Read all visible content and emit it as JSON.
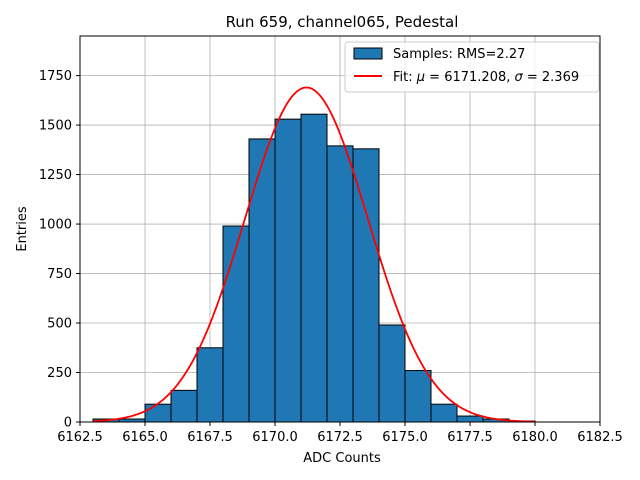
{
  "chart_data": {
    "type": "bar",
    "title": "Run 659, channel065, Pedestal",
    "xlabel": "ADC Counts",
    "ylabel": "Entries",
    "xlim": [
      6162.5,
      6182.5
    ],
    "ylim": [
      0,
      1950
    ],
    "xticks": [
      6162.5,
      6165.0,
      6167.5,
      6170.0,
      6172.5,
      6175.0,
      6177.5,
      6180.0,
      6182.5
    ],
    "xtick_labels": [
      "6162.5",
      "6165.0",
      "6167.5",
      "6170.0",
      "6172.5",
      "6175.0",
      "6177.5",
      "6180.0",
      "6182.5"
    ],
    "yticks": [
      0,
      250,
      500,
      750,
      1000,
      1250,
      1500,
      1750
    ],
    "ytick_labels": [
      "0",
      "250",
      "500",
      "750",
      "1000",
      "1250",
      "1500",
      "1750"
    ],
    "grid": true,
    "legend_position": "top-right",
    "histogram": {
      "name": "Samples: RMS=2.27",
      "color": "#1f77b4",
      "bin_edges": [
        6163,
        6164,
        6165,
        6166,
        6167,
        6168,
        6169,
        6170,
        6171,
        6172,
        6173,
        6174,
        6175,
        6176,
        6177,
        6178,
        6179,
        6180,
        6181,
        6182
      ],
      "counts": [
        15,
        15,
        90,
        160,
        375,
        990,
        1430,
        1530,
        1555,
        1395,
        1380,
        490,
        260,
        90,
        30,
        15,
        5,
        0,
        0
      ]
    },
    "fit": {
      "name": "Fit: μ = 6171.208, σ = 2.369",
      "name_prefix": "Fit: ",
      "mu_symbol": "μ",
      "mu_text": " = 6171.208, ",
      "sigma_symbol": "σ",
      "sigma_text": " = 2.369",
      "color": "#ff0000",
      "mu": 6171.208,
      "sigma": 2.369,
      "amplitude": 1690,
      "x_range": [
        6163,
        6180
      ]
    }
  }
}
